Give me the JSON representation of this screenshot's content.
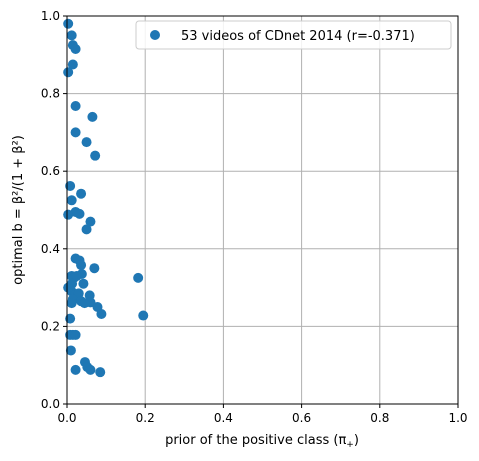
{
  "chart_data": {
    "type": "scatter",
    "xlabel": "prior of the positive class (π",
    "xlabel_sub": "+",
    "xlabel_end": ")",
    "ylabel": "optimal b = β²/(1 + β²)",
    "xlim": [
      0,
      1
    ],
    "ylim": [
      0,
      1
    ],
    "xticks": [
      "0.0",
      "0.2",
      "0.4",
      "0.6",
      "0.8",
      "1.0"
    ],
    "yticks": [
      "0.0",
      "0.2",
      "0.4",
      "0.6",
      "0.8",
      "1.0"
    ],
    "grid": true,
    "legend_position": "top-right",
    "series": [
      {
        "name": "53 videos of CDnet 2014 (r=-0.371)",
        "color": "#1f77b4",
        "points": [
          [
            0.003,
            0.98
          ],
          [
            0.012,
            0.95
          ],
          [
            0.015,
            0.925
          ],
          [
            0.022,
            0.915
          ],
          [
            0.015,
            0.875
          ],
          [
            0.003,
            0.855
          ],
          [
            0.022,
            0.768
          ],
          [
            0.065,
            0.74
          ],
          [
            0.022,
            0.7
          ],
          [
            0.05,
            0.675
          ],
          [
            0.072,
            0.64
          ],
          [
            0.008,
            0.562
          ],
          [
            0.036,
            0.542
          ],
          [
            0.012,
            0.525
          ],
          [
            0.022,
            0.495
          ],
          [
            0.032,
            0.49
          ],
          [
            0.003,
            0.488
          ],
          [
            0.06,
            0.47
          ],
          [
            0.05,
            0.45
          ],
          [
            0.022,
            0.375
          ],
          [
            0.032,
            0.37
          ],
          [
            0.036,
            0.358
          ],
          [
            0.07,
            0.35
          ],
          [
            0.012,
            0.33
          ],
          [
            0.018,
            0.325
          ],
          [
            0.038,
            0.335
          ],
          [
            0.182,
            0.325
          ],
          [
            0.013,
            0.31
          ],
          [
            0.042,
            0.31
          ],
          [
            0.012,
            0.29
          ],
          [
            0.02,
            0.28
          ],
          [
            0.03,
            0.285
          ],
          [
            0.058,
            0.28
          ],
          [
            0.015,
            0.27
          ],
          [
            0.036,
            0.265
          ],
          [
            0.06,
            0.262
          ],
          [
            0.012,
            0.26
          ],
          [
            0.078,
            0.25
          ],
          [
            0.088,
            0.232
          ],
          [
            0.195,
            0.228
          ],
          [
            0.008,
            0.22
          ],
          [
            0.008,
            0.178
          ],
          [
            0.015,
            0.178
          ],
          [
            0.022,
            0.178
          ],
          [
            0.01,
            0.138
          ],
          [
            0.046,
            0.108
          ],
          [
            0.052,
            0.095
          ],
          [
            0.06,
            0.088
          ],
          [
            0.022,
            0.088
          ],
          [
            0.085,
            0.082
          ],
          [
            0.003,
            0.3
          ],
          [
            0.045,
            0.26
          ],
          [
            0.025,
            0.33
          ]
        ]
      }
    ]
  }
}
